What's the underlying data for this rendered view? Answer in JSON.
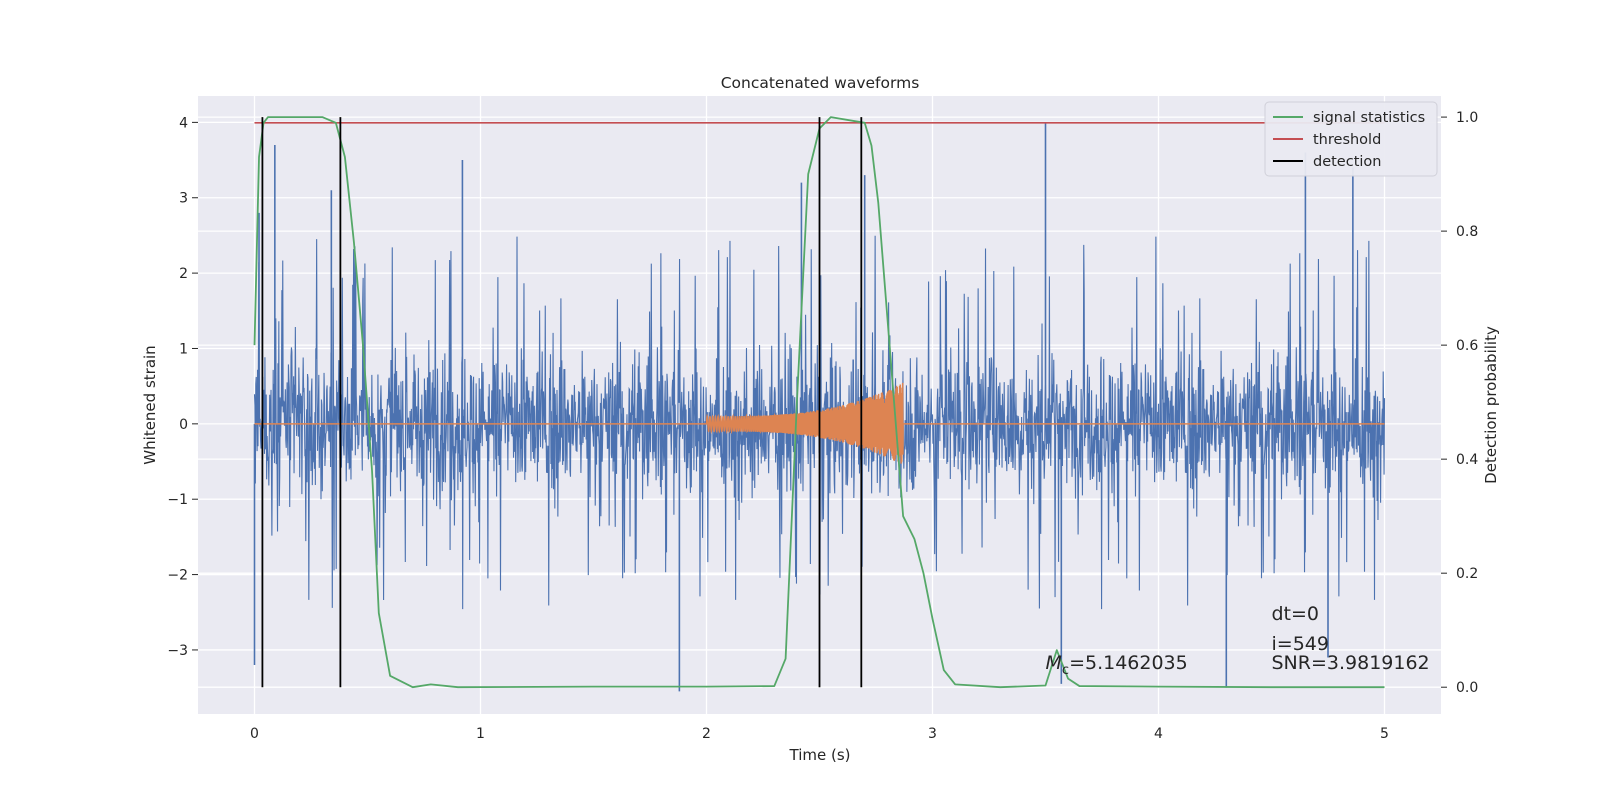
{
  "chart_data": {
    "type": "line",
    "title": "Concatenated waveforms",
    "xlabel": "Time (s)",
    "ylabel_left": "Whitened strain",
    "ylabel_right": "Detection probability",
    "xlim": [
      -0.25,
      5.25
    ],
    "ylim_left": [
      -3.85,
      4.35
    ],
    "ylim_right": [
      -0.047,
      1.037
    ],
    "xticks": [
      0,
      1,
      2,
      3,
      4,
      5
    ],
    "xtick_labels": [
      "0",
      "1",
      "2",
      "3",
      "4",
      "5"
    ],
    "yticks_left": [
      -3,
      -2,
      -1,
      0,
      1,
      2,
      3,
      4
    ],
    "ytick_labels_left": [
      "−3",
      "−2",
      "−1",
      "0",
      "1",
      "2",
      "3",
      "4"
    ],
    "yticks_right": [
      0.0,
      0.2,
      0.4,
      0.6,
      0.8,
      1.0
    ],
    "ytick_labels_right": [
      "0.0",
      "0.2",
      "0.4",
      "0.6",
      "0.8",
      "1.0"
    ],
    "grid": true,
    "legend_position": "top-right",
    "legend": [
      {
        "label": "signal statistics",
        "color": "#55a868"
      },
      {
        "label": "threshold",
        "color": "#c44e52"
      },
      {
        "label": "detection",
        "color": "#000000"
      }
    ],
    "series": [
      {
        "name": "whitened strain",
        "axis": "left",
        "color": "#4c72b0",
        "x_range": [
          0,
          5
        ],
        "noise_envelope": [
          -2.0,
          2.0
        ],
        "notable_extremes": [
          {
            "x": 0.02,
            "y": 2.8
          },
          {
            "x": 0.09,
            "y": 3.7
          },
          {
            "x": 0.34,
            "y": 3.1
          },
          {
            "x": 0.92,
            "y": 3.5
          },
          {
            "x": 2.42,
            "y": 3.2
          },
          {
            "x": 2.7,
            "y": 3.3
          },
          {
            "x": 3.5,
            "y": 4.0
          },
          {
            "x": 4.65,
            "y": 3.6
          },
          {
            "x": 4.86,
            "y": 3.4
          },
          {
            "x": 0.0,
            "y": -3.2
          },
          {
            "x": 1.88,
            "y": -3.55
          },
          {
            "x": 3.57,
            "y": -3.45
          },
          {
            "x": 4.3,
            "y": -3.5
          },
          {
            "x": 4.75,
            "y": -3.1
          }
        ]
      },
      {
        "name": "injected waveform",
        "axis": "left",
        "color": "#dd8452",
        "x_range": [
          0,
          5
        ],
        "chirp_start": 2.0,
        "chirp_end": 2.87,
        "amplitude_start": 0.1,
        "amplitude_peak": 0.55
      },
      {
        "name": "signal statistics",
        "axis": "right",
        "color": "#55a868",
        "x": [
          0,
          0.02,
          0.04,
          0.06,
          0.1,
          0.3,
          0.36,
          0.4,
          0.44,
          0.48,
          0.52,
          0.55,
          0.6,
          0.7,
          0.78,
          0.9,
          1.5,
          2.0,
          2.3,
          2.35,
          2.4,
          2.45,
          2.5,
          2.55,
          2.7,
          2.73,
          2.76,
          2.8,
          2.84,
          2.87,
          2.92,
          2.96,
          3.0,
          3.05,
          3.1,
          3.3,
          3.5,
          3.55,
          3.6,
          3.65,
          4.0,
          4.5,
          5.0
        ],
        "y": [
          0.6,
          0.93,
          0.99,
          1.0,
          1.0,
          1.0,
          0.99,
          0.93,
          0.78,
          0.6,
          0.38,
          0.13,
          0.02,
          0.0,
          0.005,
          0.0,
          0.001,
          0.001,
          0.002,
          0.05,
          0.5,
          0.9,
          0.98,
          1.0,
          0.99,
          0.95,
          0.85,
          0.65,
          0.45,
          0.3,
          0.26,
          0.2,
          0.12,
          0.03,
          0.005,
          0.0,
          0.003,
          0.065,
          0.015,
          0.002,
          0.001,
          0.0,
          0.0
        ]
      },
      {
        "name": "threshold",
        "axis": "right",
        "color": "#c44e52",
        "x": [
          0,
          5
        ],
        "y": [
          0.99,
          0.99
        ]
      },
      {
        "name": "detection",
        "axis": "right",
        "color": "#000000",
        "x": [
          0.035,
          0.38,
          2.5,
          2.685
        ],
        "y_range": [
          0.0,
          1.0
        ]
      }
    ],
    "annotations": [
      {
        "text": "dt=0",
        "x": 4.5,
        "y": -2.6
      },
      {
        "text": "i=549",
        "x": 4.5,
        "y": -3.0
      },
      {
        "text": "SNR=3.9819162",
        "x": 4.5,
        "y": -3.25
      },
      {
        "text_symbol": "M",
        "text_subscript": "c",
        "text": "=5.1462035",
        "x": 3.5,
        "y": -3.25
      }
    ]
  }
}
